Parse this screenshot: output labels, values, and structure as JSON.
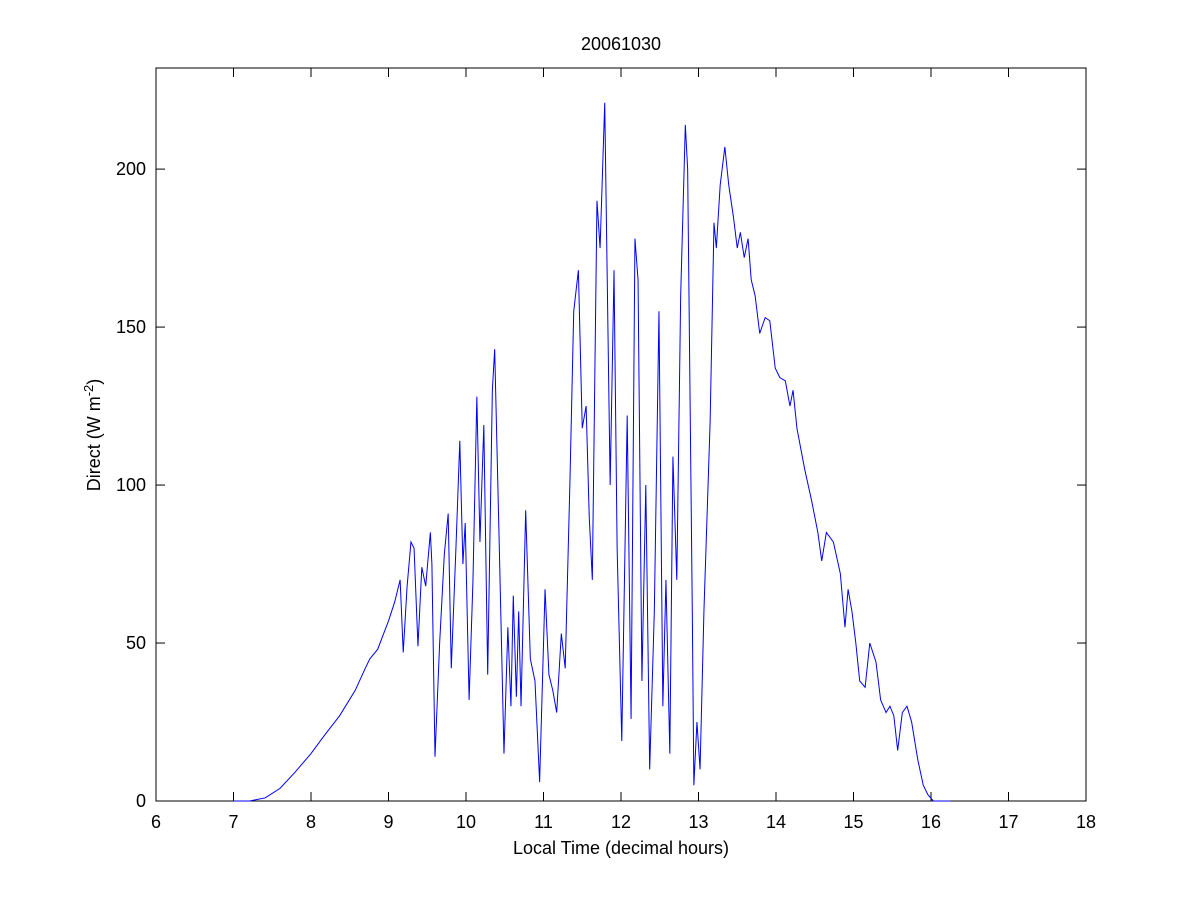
{
  "chart_data": {
    "type": "line",
    "title": "20061030",
    "xlabel": "Local Time (decimal hours)",
    "ylabel": {
      "text": "Direct (W m",
      "sup": "-2",
      "tail": ")"
    },
    "xlim": [
      6,
      18
    ],
    "xticks": [
      6,
      7,
      8,
      9,
      10,
      11,
      12,
      13,
      14,
      15,
      16,
      17,
      18
    ],
    "ylim": [
      0,
      232
    ],
    "yticks": [
      0,
      50,
      100,
      150,
      200
    ],
    "series": [
      {
        "color": "#0000ff",
        "x": [
          7.0,
          7.21,
          7.41,
          7.6,
          7.79,
          8.0,
          8.18,
          8.37,
          8.57,
          8.7,
          8.76,
          8.86,
          9.0,
          9.08,
          9.15,
          9.19,
          9.24,
          9.29,
          9.33,
          9.38,
          9.43,
          9.48,
          9.54,
          9.56,
          9.6,
          9.66,
          9.72,
          9.77,
          9.81,
          9.87,
          9.92,
          9.96,
          9.99,
          10.04,
          10.09,
          10.14,
          10.18,
          10.23,
          10.28,
          10.34,
          10.37,
          10.43,
          10.49,
          10.54,
          10.58,
          10.61,
          10.65,
          10.68,
          10.71,
          10.77,
          10.83,
          10.89,
          10.95,
          11.02,
          11.07,
          11.12,
          11.17,
          11.23,
          11.28,
          11.34,
          11.39,
          11.45,
          11.5,
          11.55,
          11.59,
          11.63,
          11.69,
          11.73,
          11.79,
          11.86,
          11.91,
          11.95,
          12.01,
          12.08,
          12.13,
          12.18,
          12.22,
          12.27,
          12.32,
          12.37,
          12.43,
          12.49,
          12.54,
          12.58,
          12.63,
          12.67,
          12.72,
          12.77,
          12.83,
          12.86,
          12.92,
          12.94,
          12.98,
          13.02,
          13.07,
          13.15,
          13.2,
          13.23,
          13.28,
          13.34,
          13.39,
          13.45,
          13.5,
          13.54,
          13.59,
          13.64,
          13.68,
          13.73,
          13.79,
          13.86,
          13.92,
          13.99,
          14.05,
          14.12,
          14.18,
          14.22,
          14.27,
          14.37,
          14.46,
          14.54,
          14.59,
          14.65,
          14.74,
          14.83,
          14.89,
          14.93,
          14.98,
          15.03,
          15.08,
          15.15,
          15.21,
          15.29,
          15.35,
          15.42,
          15.47,
          15.52,
          15.57,
          15.63,
          15.69,
          15.75,
          15.83,
          15.9,
          15.96,
          16.03,
          16.25
        ],
        "values": [
          0,
          0,
          1,
          4,
          9,
          15,
          21,
          27,
          35,
          42,
          45,
          48,
          57,
          63,
          70,
          47,
          68,
          82,
          80,
          49,
          74,
          68,
          85,
          75,
          14,
          50,
          78,
          91,
          42,
          80,
          114,
          75,
          88,
          32,
          70,
          128,
          82,
          119,
          40,
          130,
          143,
          80,
          15,
          55,
          30,
          65,
          33,
          60,
          30,
          92,
          45,
          38,
          6,
          67,
          40,
          35,
          28,
          53,
          42,
          100,
          155,
          168,
          118,
          125,
          90,
          70,
          190,
          175,
          221,
          100,
          168,
          80,
          19,
          122,
          26,
          178,
          165,
          38,
          100,
          10,
          60,
          155,
          30,
          70,
          15,
          109,
          70,
          160,
          214,
          200,
          60,
          5,
          25,
          10,
          60,
          120,
          183,
          175,
          195,
          207,
          195,
          185,
          175,
          180,
          172,
          178,
          165,
          160,
          148,
          153,
          152,
          137,
          134,
          133,
          125,
          130,
          118,
          105,
          95,
          85,
          76,
          85,
          82,
          72,
          55,
          67,
          60,
          50,
          38,
          36,
          50,
          44,
          32,
          28,
          30,
          27,
          16,
          28,
          30,
          25,
          13,
          5,
          2,
          0,
          0
        ]
      }
    ]
  }
}
